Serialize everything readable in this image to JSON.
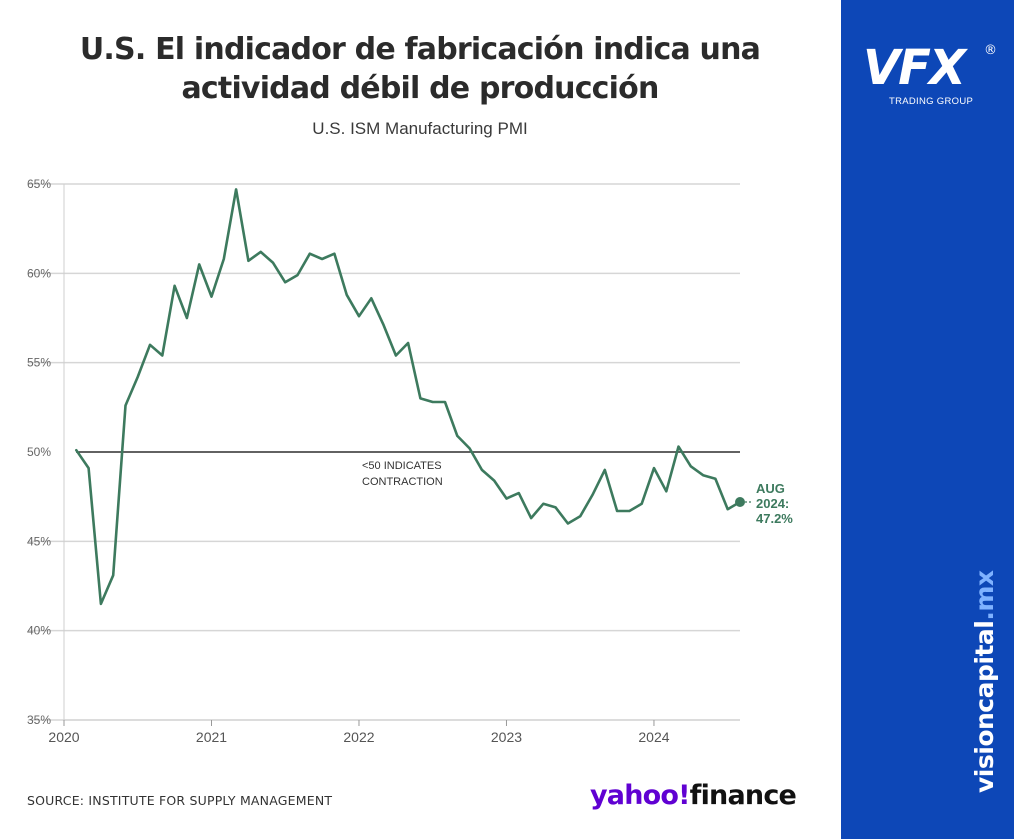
{
  "title_lines": [
    "U.S. El indicador de fabricación indica una",
    "actividad débil de producción"
  ],
  "source": "SOURCE: INSTITUTE FOR SUPPLY MANAGEMENT",
  "yahoo": {
    "part1": "yahoo",
    "part2": "finance",
    "slash": "!"
  },
  "brand": {
    "logo": "VFX",
    "registered": "®",
    "subtitle": "TRADING GROUP",
    "site_main": "visioncapital",
    "site_tld": ".mx"
  },
  "colors": {
    "line": "#3d7a5e",
    "sidebar": "#0d47b7",
    "yahoo": "#6001d2",
    "ref_line": "#2e2e2e",
    "grid": "#d6d6d6"
  },
  "chart_data": {
    "type": "line",
    "title": "U.S. ISM Manufacturing PMI",
    "xlabel": "",
    "ylabel": "",
    "ylim": [
      35,
      65
    ],
    "xlim": [
      "2020-01",
      "2024-08"
    ],
    "grid": true,
    "y_ticks": [
      35,
      40,
      45,
      50,
      55,
      60,
      65
    ],
    "y_tick_labels": [
      "35%",
      "40%",
      "45%",
      "50%",
      "55%",
      "60%",
      "65%"
    ],
    "x_ticks": [
      "2020-01",
      "2021-01",
      "2022-01",
      "2023-01",
      "2024-01"
    ],
    "x_tick_labels": [
      "2020",
      "2021",
      "2022",
      "2023",
      "2024"
    ],
    "reference_line": {
      "y": 50,
      "label_lines": [
        "<50 INDICATES",
        "CONTRACTION"
      ]
    },
    "end_label_lines": [
      "AUG",
      "2024:",
      "47.2%"
    ],
    "series": [
      {
        "x": [
          "2020-02",
          "2020-03",
          "2020-04",
          "2020-05",
          "2020-06",
          "2020-07",
          "2020-08",
          "2020-09",
          "2020-10",
          "2020-11",
          "2020-12",
          "2021-01",
          "2021-02",
          "2021-03",
          "2021-04",
          "2021-05",
          "2021-06",
          "2021-07",
          "2021-08",
          "2021-09",
          "2021-10",
          "2021-11",
          "2021-12",
          "2022-01",
          "2022-02",
          "2022-03",
          "2022-04",
          "2022-05",
          "2022-06",
          "2022-07",
          "2022-08",
          "2022-09",
          "2022-10",
          "2022-11",
          "2022-12",
          "2023-01",
          "2023-02",
          "2023-03",
          "2023-04",
          "2023-05",
          "2023-06",
          "2023-07",
          "2023-08",
          "2023-09",
          "2023-10",
          "2023-11",
          "2023-12",
          "2024-01",
          "2024-02",
          "2024-03",
          "2024-04",
          "2024-05",
          "2024-06",
          "2024-07",
          "2024-08"
        ],
        "values": [
          50.1,
          49.1,
          41.5,
          43.1,
          52.6,
          54.2,
          56.0,
          55.4,
          59.3,
          57.5,
          60.5,
          58.7,
          60.8,
          64.7,
          60.7,
          61.2,
          60.6,
          59.5,
          59.9,
          61.1,
          60.8,
          61.1,
          58.8,
          57.6,
          58.6,
          57.1,
          55.4,
          56.1,
          53.0,
          52.8,
          52.8,
          50.9,
          50.2,
          49.0,
          48.4,
          47.4,
          47.7,
          46.3,
          47.1,
          46.9,
          46.0,
          46.4,
          47.6,
          49.0,
          46.7,
          46.7,
          47.1,
          49.1,
          47.8,
          50.3,
          49.2,
          48.7,
          48.5,
          46.8,
          47.2
        ]
      }
    ]
  }
}
